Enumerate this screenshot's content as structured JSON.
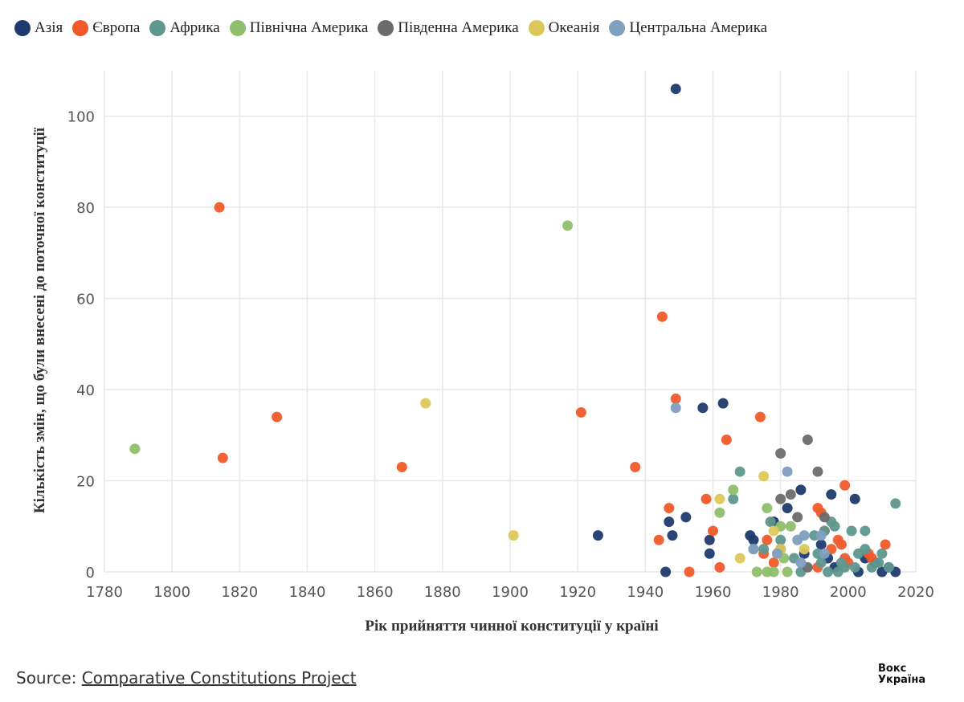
{
  "legend": [
    {
      "name": "Азія",
      "color": "#1f3a6e"
    },
    {
      "name": "Європа",
      "color": "#f05a2a"
    },
    {
      "name": "Африка",
      "color": "#5f978e"
    },
    {
      "name": "Північна Америка",
      "color": "#8fbf6a"
    },
    {
      "name": "Південна Америка",
      "color": "#6b6b6b"
    },
    {
      "name": "Океанія",
      "color": "#dcc85a"
    },
    {
      "name": "Центральна Америка",
      "color": "#7f9fbf"
    }
  ],
  "source": {
    "prefix": "Source: ",
    "link": "Comparative Constitutions Project"
  },
  "logo": {
    "line1": "Вокс",
    "line2": "Україна"
  },
  "chart_data": {
    "type": "scatter",
    "title": "",
    "xlabel": "Рік прийняття чинної конституції у країні",
    "ylabel": "Кількість змін, що були внесені до поточної конституції",
    "xlim": [
      1780,
      2020
    ],
    "ylim": [
      0,
      110
    ],
    "xticks": [
      1780,
      1800,
      1820,
      1840,
      1860,
      1880,
      1900,
      1920,
      1940,
      1960,
      1980,
      2000,
      2020
    ],
    "yticks": [
      0,
      20,
      40,
      60,
      80,
      100
    ],
    "grid": true,
    "legend_position": "top",
    "series": [
      {
        "name": "Азія",
        "points": [
          [
            1949,
            106
          ],
          [
            1963,
            37
          ],
          [
            1957,
            36
          ],
          [
            1926,
            8
          ],
          [
            1946,
            0
          ],
          [
            1947,
            11
          ],
          [
            1948,
            8
          ],
          [
            1952,
            12
          ],
          [
            1959,
            7
          ],
          [
            1959,
            4
          ],
          [
            1971,
            8
          ],
          [
            1972,
            7
          ],
          [
            1978,
            11
          ],
          [
            1980,
            5
          ],
          [
            1982,
            14
          ],
          [
            1986,
            18
          ],
          [
            1987,
            4
          ],
          [
            1992,
            6
          ],
          [
            1995,
            17
          ],
          [
            2002,
            16
          ],
          [
            1994,
            3
          ],
          [
            1996,
            1
          ],
          [
            2003,
            0
          ],
          [
            2008,
            2
          ],
          [
            2010,
            0
          ],
          [
            2014,
            0
          ],
          [
            2012,
            1
          ],
          [
            2005,
            3
          ]
        ]
      },
      {
        "name": "Європа",
        "points": [
          [
            1814,
            80
          ],
          [
            1815,
            25
          ],
          [
            1831,
            34
          ],
          [
            1868,
            23
          ],
          [
            1921,
            35
          ],
          [
            1937,
            23
          ],
          [
            1945,
            56
          ],
          [
            1949,
            38
          ],
          [
            1944,
            7
          ],
          [
            1947,
            14
          ],
          [
            1953,
            0
          ],
          [
            1958,
            16
          ],
          [
            1960,
            9
          ],
          [
            1962,
            1
          ],
          [
            1964,
            29
          ],
          [
            1974,
            34
          ],
          [
            1975,
            4
          ],
          [
            1976,
            7
          ],
          [
            1978,
            2
          ],
          [
            1991,
            14
          ],
          [
            1992,
            13
          ],
          [
            1993,
            9
          ],
          [
            1995,
            5
          ],
          [
            1997,
            7
          ],
          [
            1998,
            6
          ],
          [
            1999,
            19
          ],
          [
            1999,
            3
          ],
          [
            2006,
            4
          ],
          [
            2007,
            3
          ],
          [
            2011,
            6
          ],
          [
            1991,
            1
          ],
          [
            2000,
            2
          ]
        ]
      },
      {
        "name": "Африка",
        "points": [
          [
            1968,
            22
          ],
          [
            1966,
            16
          ],
          [
            1972,
            5
          ],
          [
            1975,
            5
          ],
          [
            1977,
            11
          ],
          [
            1980,
            7
          ],
          [
            1984,
            3
          ],
          [
            1986,
            0
          ],
          [
            1990,
            8
          ],
          [
            1991,
            4
          ],
          [
            1992,
            2
          ],
          [
            1993,
            9
          ],
          [
            1995,
            11
          ],
          [
            1996,
            10
          ],
          [
            1997,
            0
          ],
          [
            1998,
            2
          ],
          [
            2001,
            9
          ],
          [
            2003,
            4
          ],
          [
            2005,
            9
          ],
          [
            2005,
            5
          ],
          [
            2007,
            1
          ],
          [
            2010,
            4
          ],
          [
            2012,
            1
          ],
          [
            2014,
            15
          ],
          [
            1994,
            0
          ],
          [
            2002,
            1
          ],
          [
            1999,
            1
          ],
          [
            2009,
            2
          ]
        ]
      },
      {
        "name": "Північна Америка",
        "points": [
          [
            1789,
            27
          ],
          [
            1917,
            76
          ],
          [
            1962,
            13
          ],
          [
            1966,
            18
          ],
          [
            1973,
            0
          ],
          [
            1976,
            14
          ],
          [
            1976,
            0
          ],
          [
            1978,
            0
          ],
          [
            1980,
            10
          ],
          [
            1982,
            0
          ],
          [
            1983,
            10
          ],
          [
            1981,
            3
          ]
        ]
      },
      {
        "name": "Південна Америка",
        "points": [
          [
            1980,
            26
          ],
          [
            1988,
            29
          ],
          [
            1991,
            22
          ],
          [
            1980,
            16
          ],
          [
            1983,
            17
          ],
          [
            1985,
            12
          ],
          [
            1993,
            12
          ],
          [
            1988,
            1
          ]
        ]
      },
      {
        "name": "Океанія",
        "points": [
          [
            1875,
            37
          ],
          [
            1901,
            8
          ],
          [
            1962,
            16
          ],
          [
            1968,
            3
          ],
          [
            1975,
            21
          ],
          [
            1978,
            9
          ],
          [
            1979,
            4
          ],
          [
            1987,
            5
          ],
          [
            1980,
            5
          ]
        ]
      },
      {
        "name": "Центральна Америка",
        "points": [
          [
            1949,
            36
          ],
          [
            1982,
            22
          ],
          [
            1972,
            5
          ],
          [
            1979,
            4
          ],
          [
            1985,
            7
          ],
          [
            1987,
            8
          ],
          [
            1992,
            8
          ],
          [
            1993,
            4
          ],
          [
            1986,
            2
          ]
        ]
      }
    ]
  }
}
